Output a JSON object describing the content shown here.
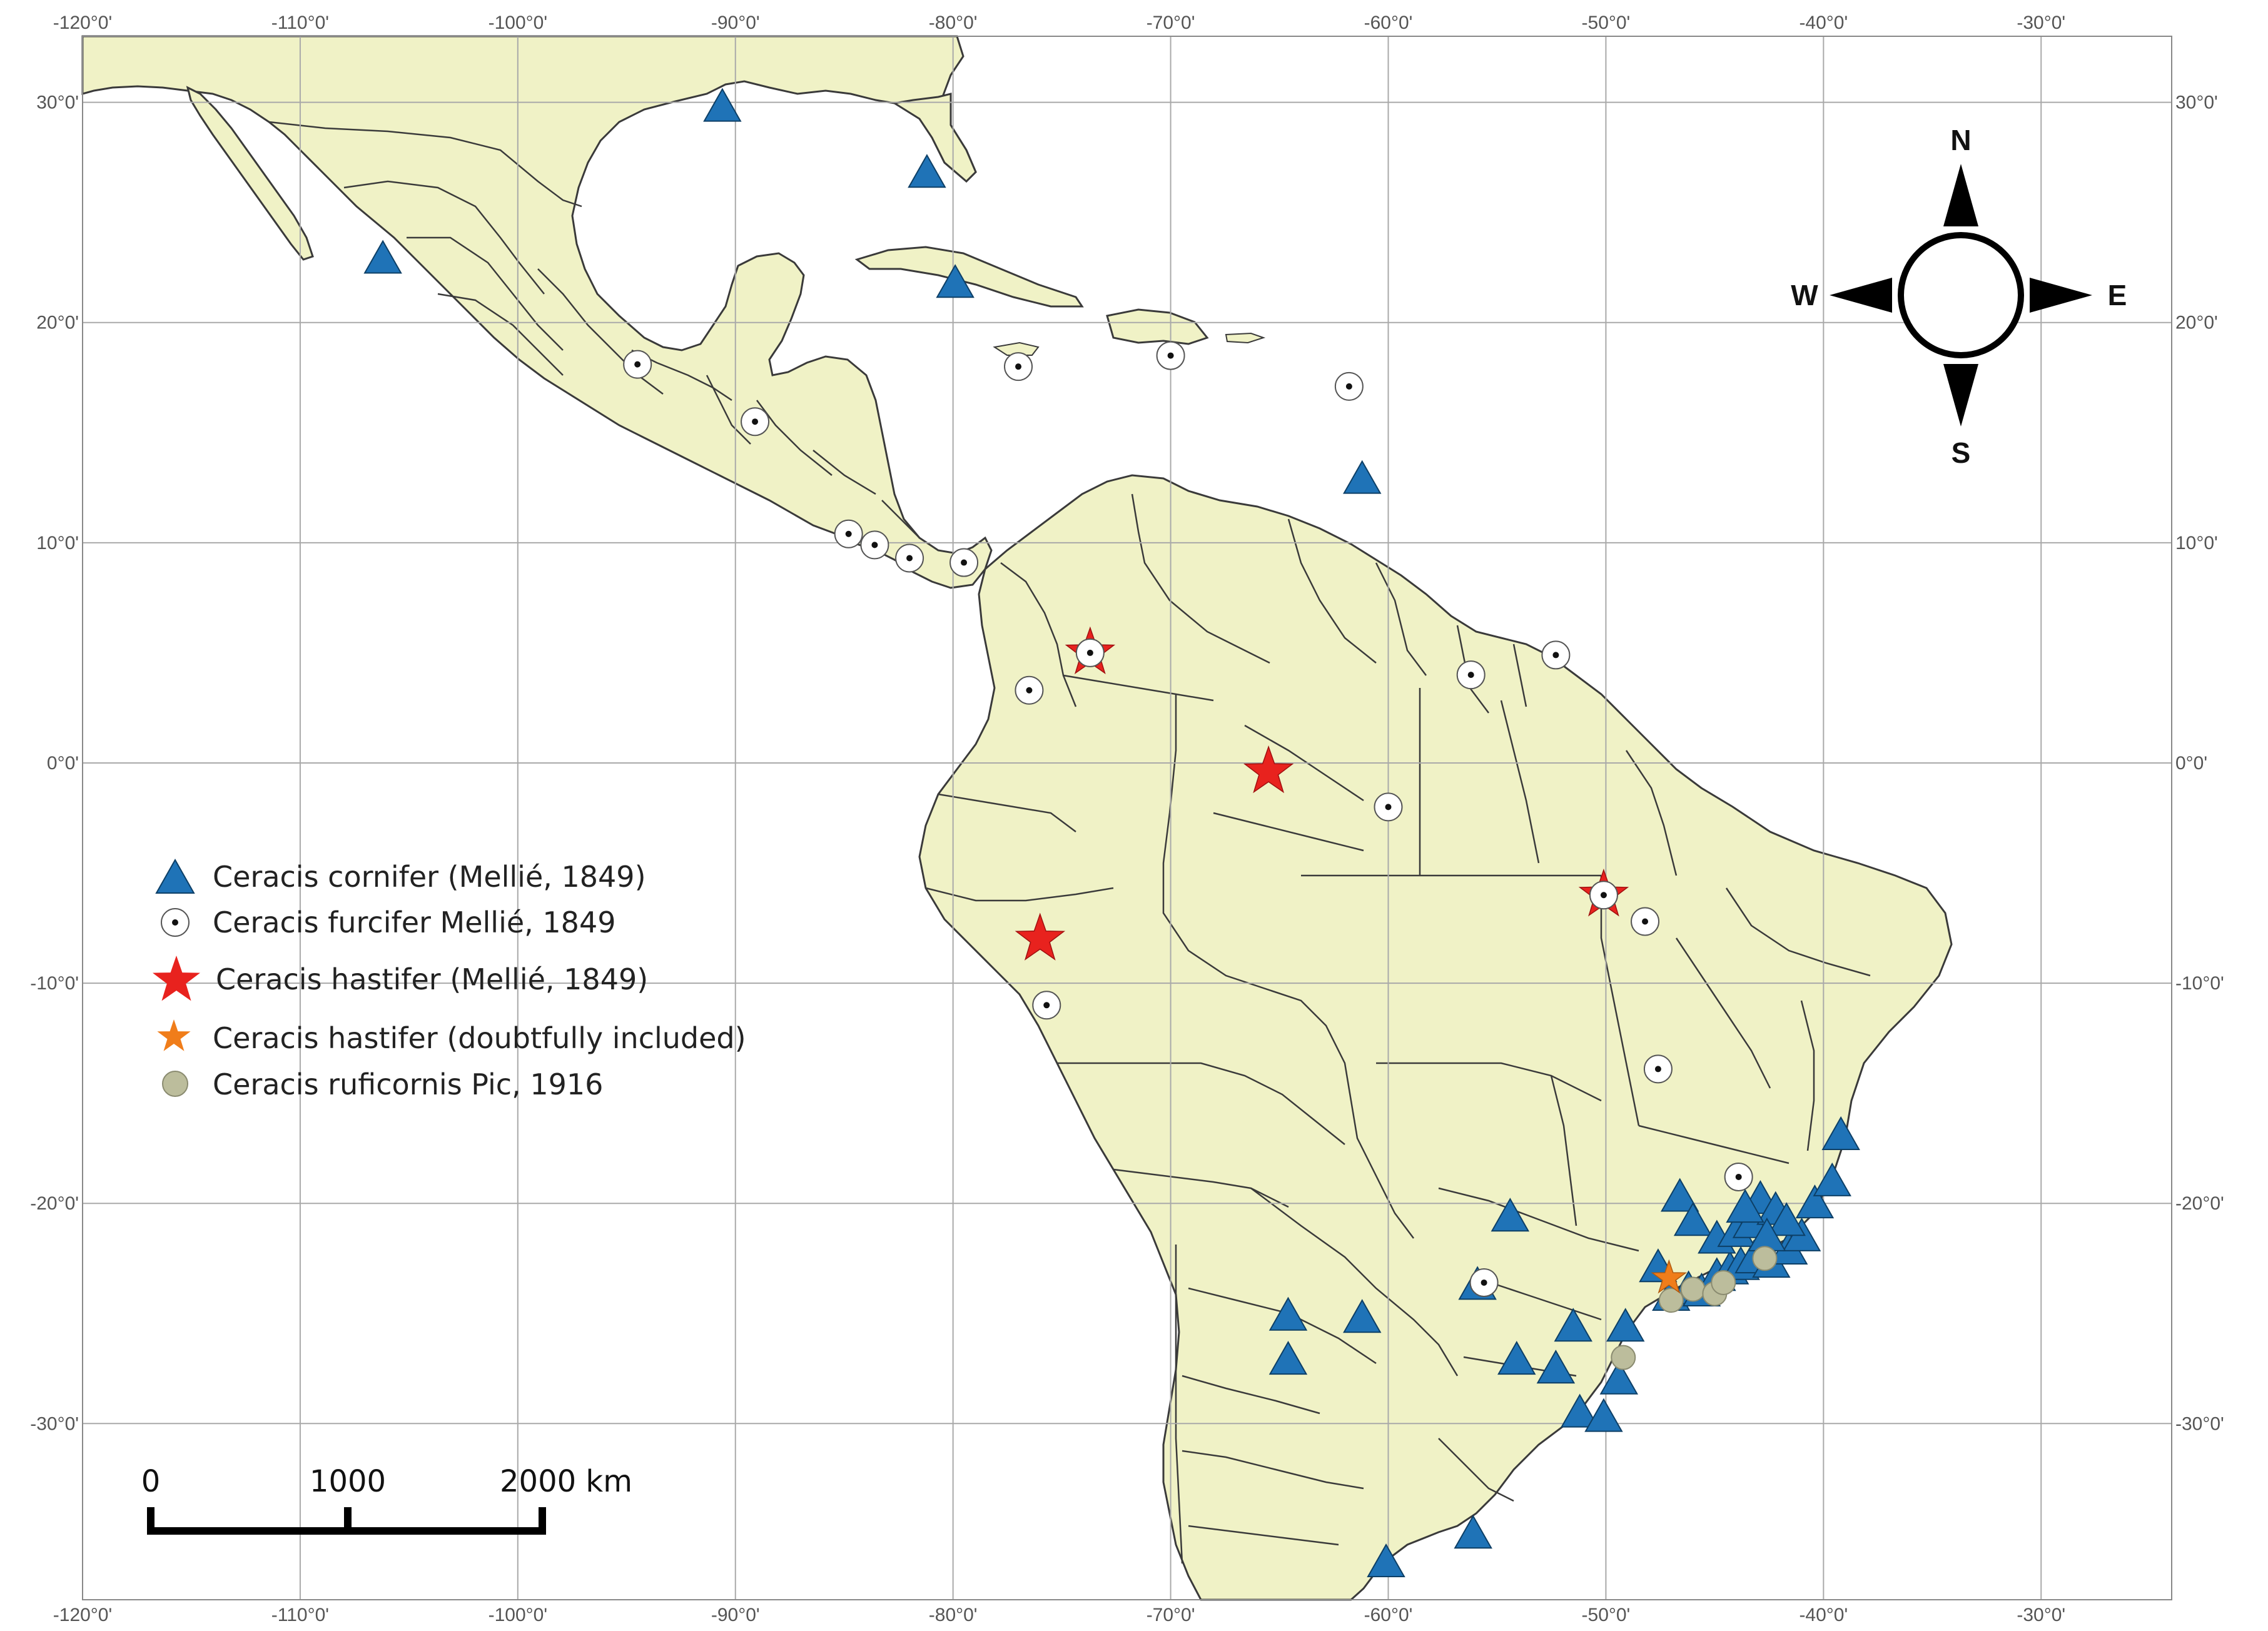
{
  "map": {
    "lon_range": [
      -120,
      -24
    ],
    "lat_range": [
      -38,
      33
    ],
    "meridians": [
      -120,
      -110,
      -100,
      -90,
      -80,
      -70,
      -60,
      -50,
      -40,
      -30
    ],
    "parallels": [
      30,
      20,
      10,
      0,
      -10,
      -20,
      -30
    ],
    "colors": {
      "ocean": "#ffffff",
      "land": "#f0f2c6",
      "border": "#3a3a3a",
      "grid": "#a9a9a9",
      "triangle": "#1f73b7",
      "star_red": "#e8221e",
      "star_orange": "#f07d1a",
      "grey_dot": "#bcbd9c"
    }
  },
  "lon_labels": [
    "-120°0'",
    "-110°0'",
    "-100°0'",
    "-90°0'",
    "-80°0'",
    "-70°0'",
    "-60°0'",
    "-50°0'",
    "-40°0'",
    "-30°0'"
  ],
  "lat_labels": [
    "30°0'",
    "20°0'",
    "10°0'",
    "0°0'",
    "-10°0'",
    "-20°0'",
    "-30°0'"
  ],
  "compass": {
    "n": "N",
    "s": "S",
    "e": "E",
    "w": "W"
  },
  "scale_bar": {
    "labels": [
      "0",
      "1000",
      "2000 km"
    ]
  },
  "legend": [
    {
      "symbol": "triangle",
      "label": "Ceracis cornifer (Mellié, 1849)"
    },
    {
      "symbol": "circle-dot",
      "label": "Ceracis furcifer Mellié, 1849"
    },
    {
      "symbol": "star-red",
      "label": "Ceracis hastifer (Mellié, 1849)"
    },
    {
      "symbol": "star-orange",
      "label": "Ceracis hastifer (doubtfully included)"
    },
    {
      "symbol": "grey-dot",
      "label": "Ceracis ruficornis Pic, 1916"
    }
  ],
  "records": {
    "cornifer": [
      [
        -90.6,
        29.7
      ],
      [
        -81.2,
        26.7
      ],
      [
        -106.2,
        22.8
      ],
      [
        -79.9,
        21.7
      ],
      [
        -61.2,
        12.8
      ],
      [
        -54.4,
        -20.7
      ],
      [
        -55.9,
        -23.8
      ],
      [
        -64.6,
        -25.2
      ],
      [
        -61.2,
        -25.3
      ],
      [
        -64.6,
        -27.2
      ],
      [
        -54.1,
        -27.2
      ],
      [
        -52.3,
        -27.6
      ],
      [
        -51.5,
        -25.7
      ],
      [
        -49.1,
        -25.7
      ],
      [
        -51.2,
        -29.6
      ],
      [
        -50.1,
        -29.8
      ],
      [
        -49.4,
        -28.1
      ],
      [
        -56.1,
        -35.1
      ],
      [
        -60.1,
        -36.4
      ],
      [
        -47.6,
        -23.0
      ],
      [
        -47.0,
        -24.3
      ],
      [
        -46.2,
        -24.0
      ],
      [
        -45.6,
        -24.1
      ],
      [
        -44.9,
        -23.4
      ],
      [
        -44.3,
        -23.1
      ],
      [
        -43.8,
        -22.9
      ],
      [
        -43.2,
        -22.6
      ],
      [
        -42.4,
        -22.8
      ],
      [
        -41.6,
        -22.2
      ],
      [
        -41.0,
        -21.6
      ],
      [
        -40.4,
        -20.1
      ],
      [
        -39.6,
        -19.1
      ],
      [
        -39.2,
        -17.0
      ],
      [
        -46.6,
        -19.8
      ],
      [
        -46.0,
        -20.9
      ],
      [
        -44.9,
        -21.7
      ],
      [
        -44.0,
        -21.4
      ],
      [
        -43.3,
        -21.0
      ],
      [
        -42.9,
        -19.9
      ],
      [
        -42.2,
        -20.4
      ],
      [
        -41.7,
        -20.9
      ],
      [
        -43.6,
        -20.3
      ],
      [
        -42.6,
        -21.6
      ]
    ],
    "furcifer": [
      [
        -94.5,
        18.1
      ],
      [
        -77.0,
        18.0
      ],
      [
        -70.0,
        18.5
      ],
      [
        -61.8,
        17.1
      ],
      [
        -89.1,
        15.5
      ],
      [
        -84.8,
        10.4
      ],
      [
        -83.6,
        9.9
      ],
      [
        -82.0,
        9.3
      ],
      [
        -79.5,
        9.1
      ],
      [
        -73.7,
        5.0
      ],
      [
        -76.5,
        3.3
      ],
      [
        -60.0,
        -2.0
      ],
      [
        -56.2,
        4.0
      ],
      [
        -52.3,
        4.9
      ],
      [
        -50.1,
        -6.0
      ],
      [
        -48.2,
        -7.2
      ],
      [
        -47.6,
        -13.9
      ],
      [
        -43.9,
        -18.8
      ],
      [
        -55.6,
        -23.6
      ],
      [
        -75.7,
        -11.0
      ]
    ],
    "hastifer": [
      [
        -65.5,
        -0.4
      ],
      [
        -76.0,
        -8.0
      ],
      [
        -73.7,
        5.0
      ],
      [
        -50.1,
        -6.0
      ]
    ],
    "hastifer_doubtful": [
      [
        -47.1,
        -23.4
      ]
    ],
    "ruficornis": [
      [
        -47.0,
        -24.4
      ],
      [
        -46.0,
        -23.9
      ],
      [
        -45.0,
        -24.1
      ],
      [
        -44.6,
        -23.6
      ],
      [
        -42.7,
        -22.5
      ],
      [
        -49.2,
        -27.0
      ]
    ]
  }
}
